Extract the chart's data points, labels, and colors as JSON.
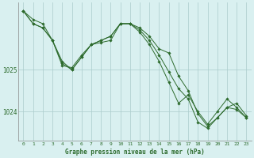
{
  "background_color": "#d9f0f0",
  "grid_color": "#aacccc",
  "line_color": "#2d6b2d",
  "marker_color": "#2d6b2d",
  "xlabel": "Graphe pression niveau de la mer (hPa)",
  "xlim": [
    -0.5,
    23.5
  ],
  "ylim": [
    1023.3,
    1026.6
  ],
  "yticks": [
    1024.0,
    1025.0
  ],
  "ytick_labels": [
    "1024",
    "1025"
  ],
  "xtick_labels": [
    "0",
    "1",
    "2",
    "3",
    "4",
    "5",
    "6",
    "7",
    "8",
    "9",
    "10",
    "11",
    "12",
    "13",
    "14",
    "15",
    "16",
    "17",
    "18",
    "19",
    "20",
    "21",
    "22",
    "23"
  ],
  "series": [
    [
      1026.4,
      1026.2,
      1026.1,
      1025.7,
      1025.1,
      1025.05,
      1025.35,
      1025.6,
      1025.65,
      1025.7,
      1026.1,
      1026.1,
      1026.0,
      1025.8,
      1025.5,
      1025.4,
      1024.85,
      1024.5,
      1023.95,
      1023.65,
      1023.85,
      1024.1,
      1024.05,
      1023.85
    ],
    [
      1026.4,
      1026.1,
      1026.0,
      1025.7,
      1025.2,
      1025.0,
      1025.3,
      1025.6,
      1025.7,
      1025.8,
      1026.1,
      1026.1,
      1025.9,
      1025.6,
      1025.2,
      1024.7,
      1024.2,
      1024.4,
      1024.0,
      1023.7,
      1024.0,
      1024.3,
      1024.1,
      1023.85
    ],
    [
      1026.4,
      1026.1,
      1026.0,
      1025.7,
      1025.15,
      1025.0,
      1025.3,
      1025.6,
      1025.7,
      1025.8,
      1026.1,
      1026.1,
      1025.95,
      1025.7,
      1025.35,
      1024.95,
      1024.55,
      1024.3,
      1023.75,
      1023.6,
      1023.85,
      1024.1,
      1024.2,
      1023.9
    ]
  ]
}
